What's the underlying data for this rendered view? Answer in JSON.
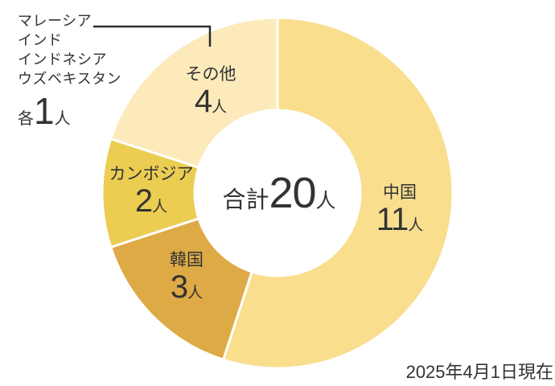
{
  "chart_data": {
    "type": "pie",
    "subtype": "donut",
    "title": "",
    "unit": "人",
    "total": {
      "prefix": "合計",
      "value": "20",
      "unit": "人"
    },
    "series": [
      {
        "name": "china",
        "label": "中国",
        "value": 11,
        "color": "#F9DE8E"
      },
      {
        "name": "korea",
        "label": "韓国",
        "value": 3,
        "color": "#DEAA46"
      },
      {
        "name": "cambodia",
        "label": "カンボジア",
        "value": 2,
        "color": "#EBCD52"
      },
      {
        "name": "others",
        "label": "その他",
        "value": 4,
        "color": "#FCEABB"
      }
    ],
    "start_angle_deg": 0,
    "direction": "clockwise",
    "slice_gap_color": "#ffffff",
    "legend_position": "on-slice",
    "as_of": "2025年4月1日現在"
  },
  "annotation": {
    "countries": [
      "マレーシア",
      "インド",
      "インドネシア",
      "ウズベキスタン"
    ],
    "each": {
      "prefix": "各",
      "value": "1",
      "unit": "人"
    }
  }
}
